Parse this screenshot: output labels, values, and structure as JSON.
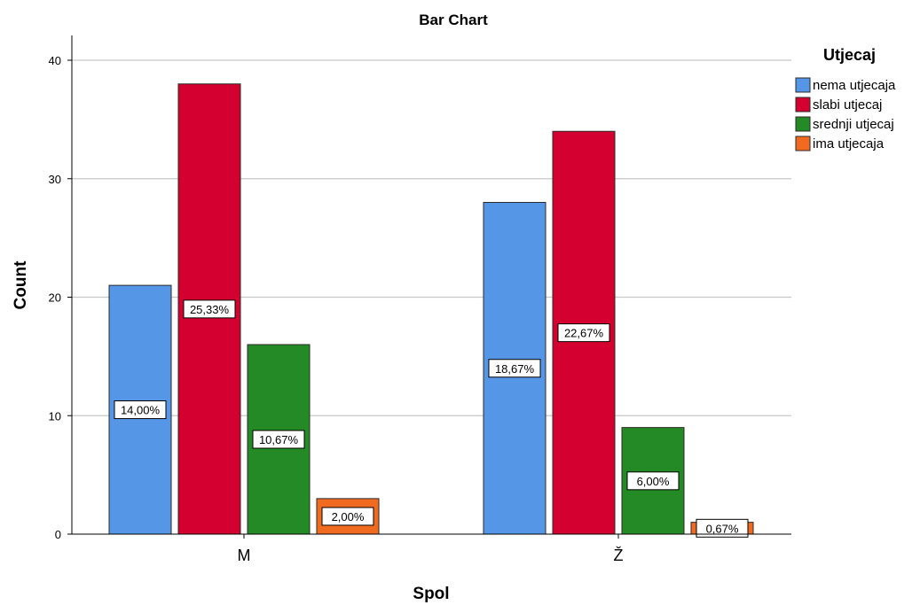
{
  "chart_data": {
    "type": "bar",
    "title": "Bar Chart",
    "xlabel": "Spol",
    "ylabel": "Count",
    "categories": [
      "M",
      "Ž"
    ],
    "ylim": [
      0,
      42
    ],
    "yticks": [
      0,
      10,
      20,
      30,
      40
    ],
    "grid": true,
    "legend": {
      "title": "Utjecaj",
      "placement": "top-right"
    },
    "series": [
      {
        "name": "nema utjecaja",
        "color": "#5596e6",
        "values": [
          21,
          28
        ],
        "labels": [
          "14,00%",
          "18,67%"
        ]
      },
      {
        "name": "slabi utjecaj",
        "color": "#d4002f",
        "values": [
          38,
          34
        ],
        "labels": [
          "25,33%",
          "22,67%"
        ]
      },
      {
        "name": "srednji utjecaj",
        "color": "#248a25",
        "values": [
          16,
          9
        ],
        "labels": [
          "10,67%",
          "6,00%"
        ]
      },
      {
        "name": "ima utjecaja",
        "color": "#f06b1f",
        "values": [
          3,
          1
        ],
        "labels": [
          "2,00%",
          "0,67%"
        ]
      }
    ]
  }
}
